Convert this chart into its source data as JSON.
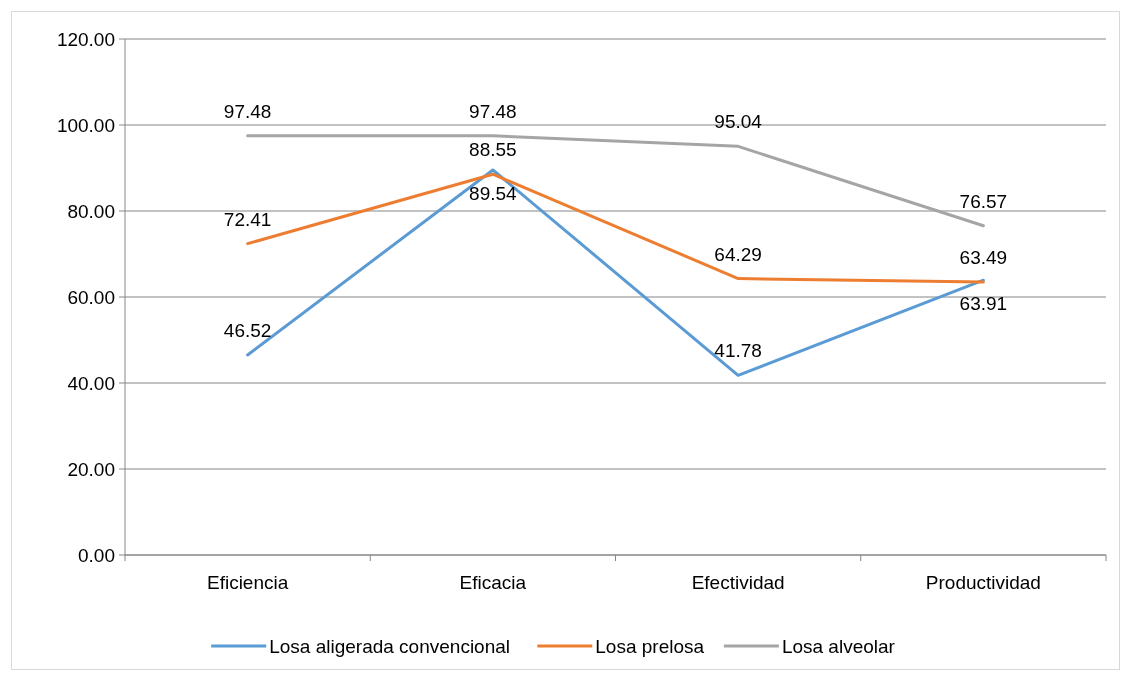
{
  "chart_data": {
    "type": "line",
    "categories": [
      "Eficiencia",
      "Eficacia",
      "Efectividad",
      "Productividad"
    ],
    "series": [
      {
        "name": "Losa aligerada convencional",
        "color": "#5b9bd5",
        "values": [
          46.52,
          89.54,
          41.78,
          63.91
        ]
      },
      {
        "name": "Losa prelosa",
        "color": "#ed7d31",
        "values": [
          72.41,
          88.55,
          64.29,
          63.49
        ]
      },
      {
        "name": "Losa alveolar",
        "color": "#a5a5a5",
        "values": [
          97.48,
          97.48,
          95.04,
          76.57
        ]
      }
    ],
    "ylim": [
      0,
      120
    ],
    "yticks": [
      {
        "value": 0,
        "label": "0.00"
      },
      {
        "value": 20,
        "label": "20.00"
      },
      {
        "value": 40,
        "label": "40.00"
      },
      {
        "value": 60,
        "label": "60.00"
      },
      {
        "value": 80,
        "label": "80.00"
      },
      {
        "value": 100,
        "label": "100.00"
      },
      {
        "value": 120,
        "label": "120.00"
      }
    ],
    "grid": "y",
    "legend": "bottom",
    "marker": "none",
    "line_style": "solid",
    "value_labels": [
      [
        "46.52",
        "89.54",
        "41.78",
        "63.91"
      ],
      [
        "72.41",
        "88.55",
        "64.29",
        "63.49"
      ],
      [
        "97.48",
        "97.48",
        "95.04",
        "76.57"
      ]
    ]
  }
}
